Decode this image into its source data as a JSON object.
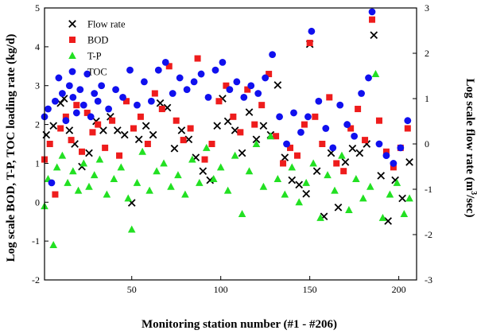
{
  "chart_data": {
    "type": "scatter",
    "xlabel": "Monitoring station number (#1 - #206)",
    "ylabel_left": "Log scale BOD, T-P, TOC loading rate (kg/d)",
    "ylabel_right_main": "Log scale flow rate (m",
    "ylabel_right_sup": "3",
    "ylabel_right_tail": "/sec)",
    "xlim": [
      1,
      210
    ],
    "xticks": [
      50,
      100,
      150,
      200
    ],
    "ylim_left": [
      -2,
      5
    ],
    "yticks_left": [
      -2,
      -1,
      0,
      1,
      2,
      3,
      4,
      5
    ],
    "ylim_right": [
      -3,
      3
    ],
    "yticks_right": [
      -3,
      -2,
      -1,
      0,
      1,
      2,
      3
    ],
    "grid": false,
    "legend_position": "top-left",
    "series": [
      {
        "name": "Flow rate",
        "marker": "x",
        "color": "#000000",
        "axis": "right",
        "x": [
          2,
          6,
          10,
          12,
          15,
          18,
          22,
          26,
          30,
          34,
          38,
          42,
          46,
          50,
          54,
          58,
          62,
          66,
          70,
          74,
          78,
          82,
          86,
          90,
          94,
          98,
          101,
          104,
          108,
          112,
          116,
          120,
          124,
          128,
          132,
          136,
          140,
          144,
          148,
          150,
          154,
          158,
          162,
          166,
          170,
          174,
          178,
          182,
          186,
          190,
          194,
          198,
          202,
          206
        ],
        "y": [
          0.2,
          0.4,
          0.9,
          1.0,
          0.3,
          0.0,
          -0.5,
          -0.2,
          0.5,
          0.3,
          0.6,
          0.3,
          0.2,
          -1.3,
          0.1,
          0.4,
          0.2,
          0.9,
          0.8,
          -0.1,
          0.3,
          0.1,
          -0.3,
          -0.6,
          -0.8,
          0.4,
          1.0,
          0.5,
          0.3,
          -0.2,
          0.7,
          0.1,
          0.4,
          0.2,
          1.3,
          -0.3,
          -0.8,
          -0.9,
          -1.1,
          2.2,
          -0.6,
          -1.6,
          -0.2,
          -1.4,
          -0.4,
          -0.1,
          -0.2,
          0.0,
          2.4,
          -0.7,
          -1.7,
          -0.8,
          -1.2,
          -0.4
        ]
      },
      {
        "name": "BOD",
        "marker": "square",
        "color": "#ee1c1c",
        "axis": "left",
        "x": [
          1,
          4,
          7,
          10,
          13,
          16,
          19,
          22,
          25,
          28,
          31,
          35,
          39,
          43,
          47,
          51,
          55,
          59,
          63,
          67,
          71,
          75,
          79,
          83,
          87,
          91,
          95,
          99,
          103,
          107,
          111,
          115,
          119,
          123,
          127,
          131,
          135,
          139,
          143,
          147,
          150,
          153,
          157,
          161,
          165,
          169,
          173,
          177,
          181,
          185,
          189,
          193,
          197,
          201,
          205
        ],
        "y": [
          1.1,
          1.5,
          0.2,
          1.9,
          2.2,
          1.6,
          2.5,
          1.3,
          2.3,
          1.8,
          2.0,
          1.4,
          2.1,
          1.2,
          2.6,
          1.9,
          2.2,
          1.5,
          2.8,
          2.4,
          3.5,
          2.1,
          1.6,
          1.9,
          3.7,
          1.1,
          1.5,
          2.6,
          3.0,
          2.2,
          1.8,
          2.9,
          2.0,
          2.5,
          3.3,
          1.7,
          1.0,
          1.4,
          1.2,
          2.0,
          4.1,
          2.2,
          1.5,
          2.7,
          1.0,
          0.8,
          1.9,
          2.4,
          1.6,
          4.7,
          2.1,
          1.3,
          0.9,
          1.4,
          1.9
        ]
      },
      {
        "name": "T-P",
        "marker": "triangle",
        "color": "#22e022",
        "axis": "left",
        "x": [
          1,
          3,
          6,
          8,
          11,
          14,
          17,
          20,
          23,
          26,
          29,
          32,
          36,
          40,
          44,
          48,
          50,
          53,
          56,
          60,
          64,
          68,
          72,
          76,
          80,
          84,
          88,
          92,
          96,
          100,
          104,
          108,
          112,
          116,
          120,
          124,
          128,
          132,
          136,
          140,
          144,
          148,
          152,
          156,
          160,
          164,
          168,
          172,
          176,
          180,
          184,
          187,
          191,
          195,
          199,
          203,
          206
        ],
        "y": [
          -0.1,
          0.6,
          -1.1,
          0.9,
          1.2,
          0.5,
          0.8,
          0.3,
          1.0,
          0.4,
          0.7,
          1.1,
          0.2,
          0.6,
          0.9,
          0.1,
          -0.7,
          0.5,
          1.3,
          0.3,
          0.8,
          1.0,
          0.4,
          0.7,
          0.2,
          1.1,
          0.5,
          1.4,
          0.6,
          0.9,
          0.3,
          1.2,
          -0.3,
          0.8,
          1.5,
          0.4,
          1.7,
          0.6,
          0.2,
          0.9,
          0.0,
          0.5,
          1.0,
          -0.4,
          0.7,
          0.3,
          1.2,
          -0.2,
          0.6,
          0.1,
          0.4,
          3.3,
          -0.4,
          0.2,
          0.5,
          -0.3,
          0.1
        ]
      },
      {
        "name": "TOC",
        "marker": "circle",
        "color": "#1010ee",
        "axis": "left",
        "x": [
          1,
          3,
          5,
          7,
          9,
          11,
          13,
          15,
          17,
          19,
          21,
          23,
          25,
          27,
          29,
          31,
          33,
          37,
          41,
          45,
          49,
          53,
          57,
          61,
          65,
          69,
          73,
          77,
          81,
          85,
          89,
          93,
          97,
          101,
          105,
          109,
          113,
          117,
          121,
          125,
          129,
          133,
          137,
          141,
          145,
          149,
          151,
          155,
          159,
          163,
          167,
          171,
          175,
          179,
          183,
          185,
          189,
          193,
          197,
          201,
          205
        ],
        "y": [
          2.2,
          2.4,
          0.5,
          2.6,
          3.2,
          2.8,
          2.1,
          3.0,
          2.7,
          2.3,
          2.9,
          2.5,
          3.3,
          2.2,
          2.8,
          2.6,
          3.0,
          2.4,
          2.9,
          2.7,
          3.4,
          2.5,
          3.1,
          2.6,
          3.4,
          3.6,
          2.8,
          3.2,
          2.9,
          3.1,
          3.3,
          2.7,
          3.4,
          3.6,
          2.9,
          3.1,
          2.7,
          3.0,
          2.8,
          3.2,
          3.8,
          2.2,
          1.5,
          2.3,
          1.8,
          2.2,
          4.4,
          2.6,
          1.9,
          1.4,
          2.5,
          2.0,
          1.7,
          2.8,
          3.2,
          4.9,
          1.5,
          1.2,
          1.0,
          1.4,
          2.1
        ]
      }
    ]
  }
}
